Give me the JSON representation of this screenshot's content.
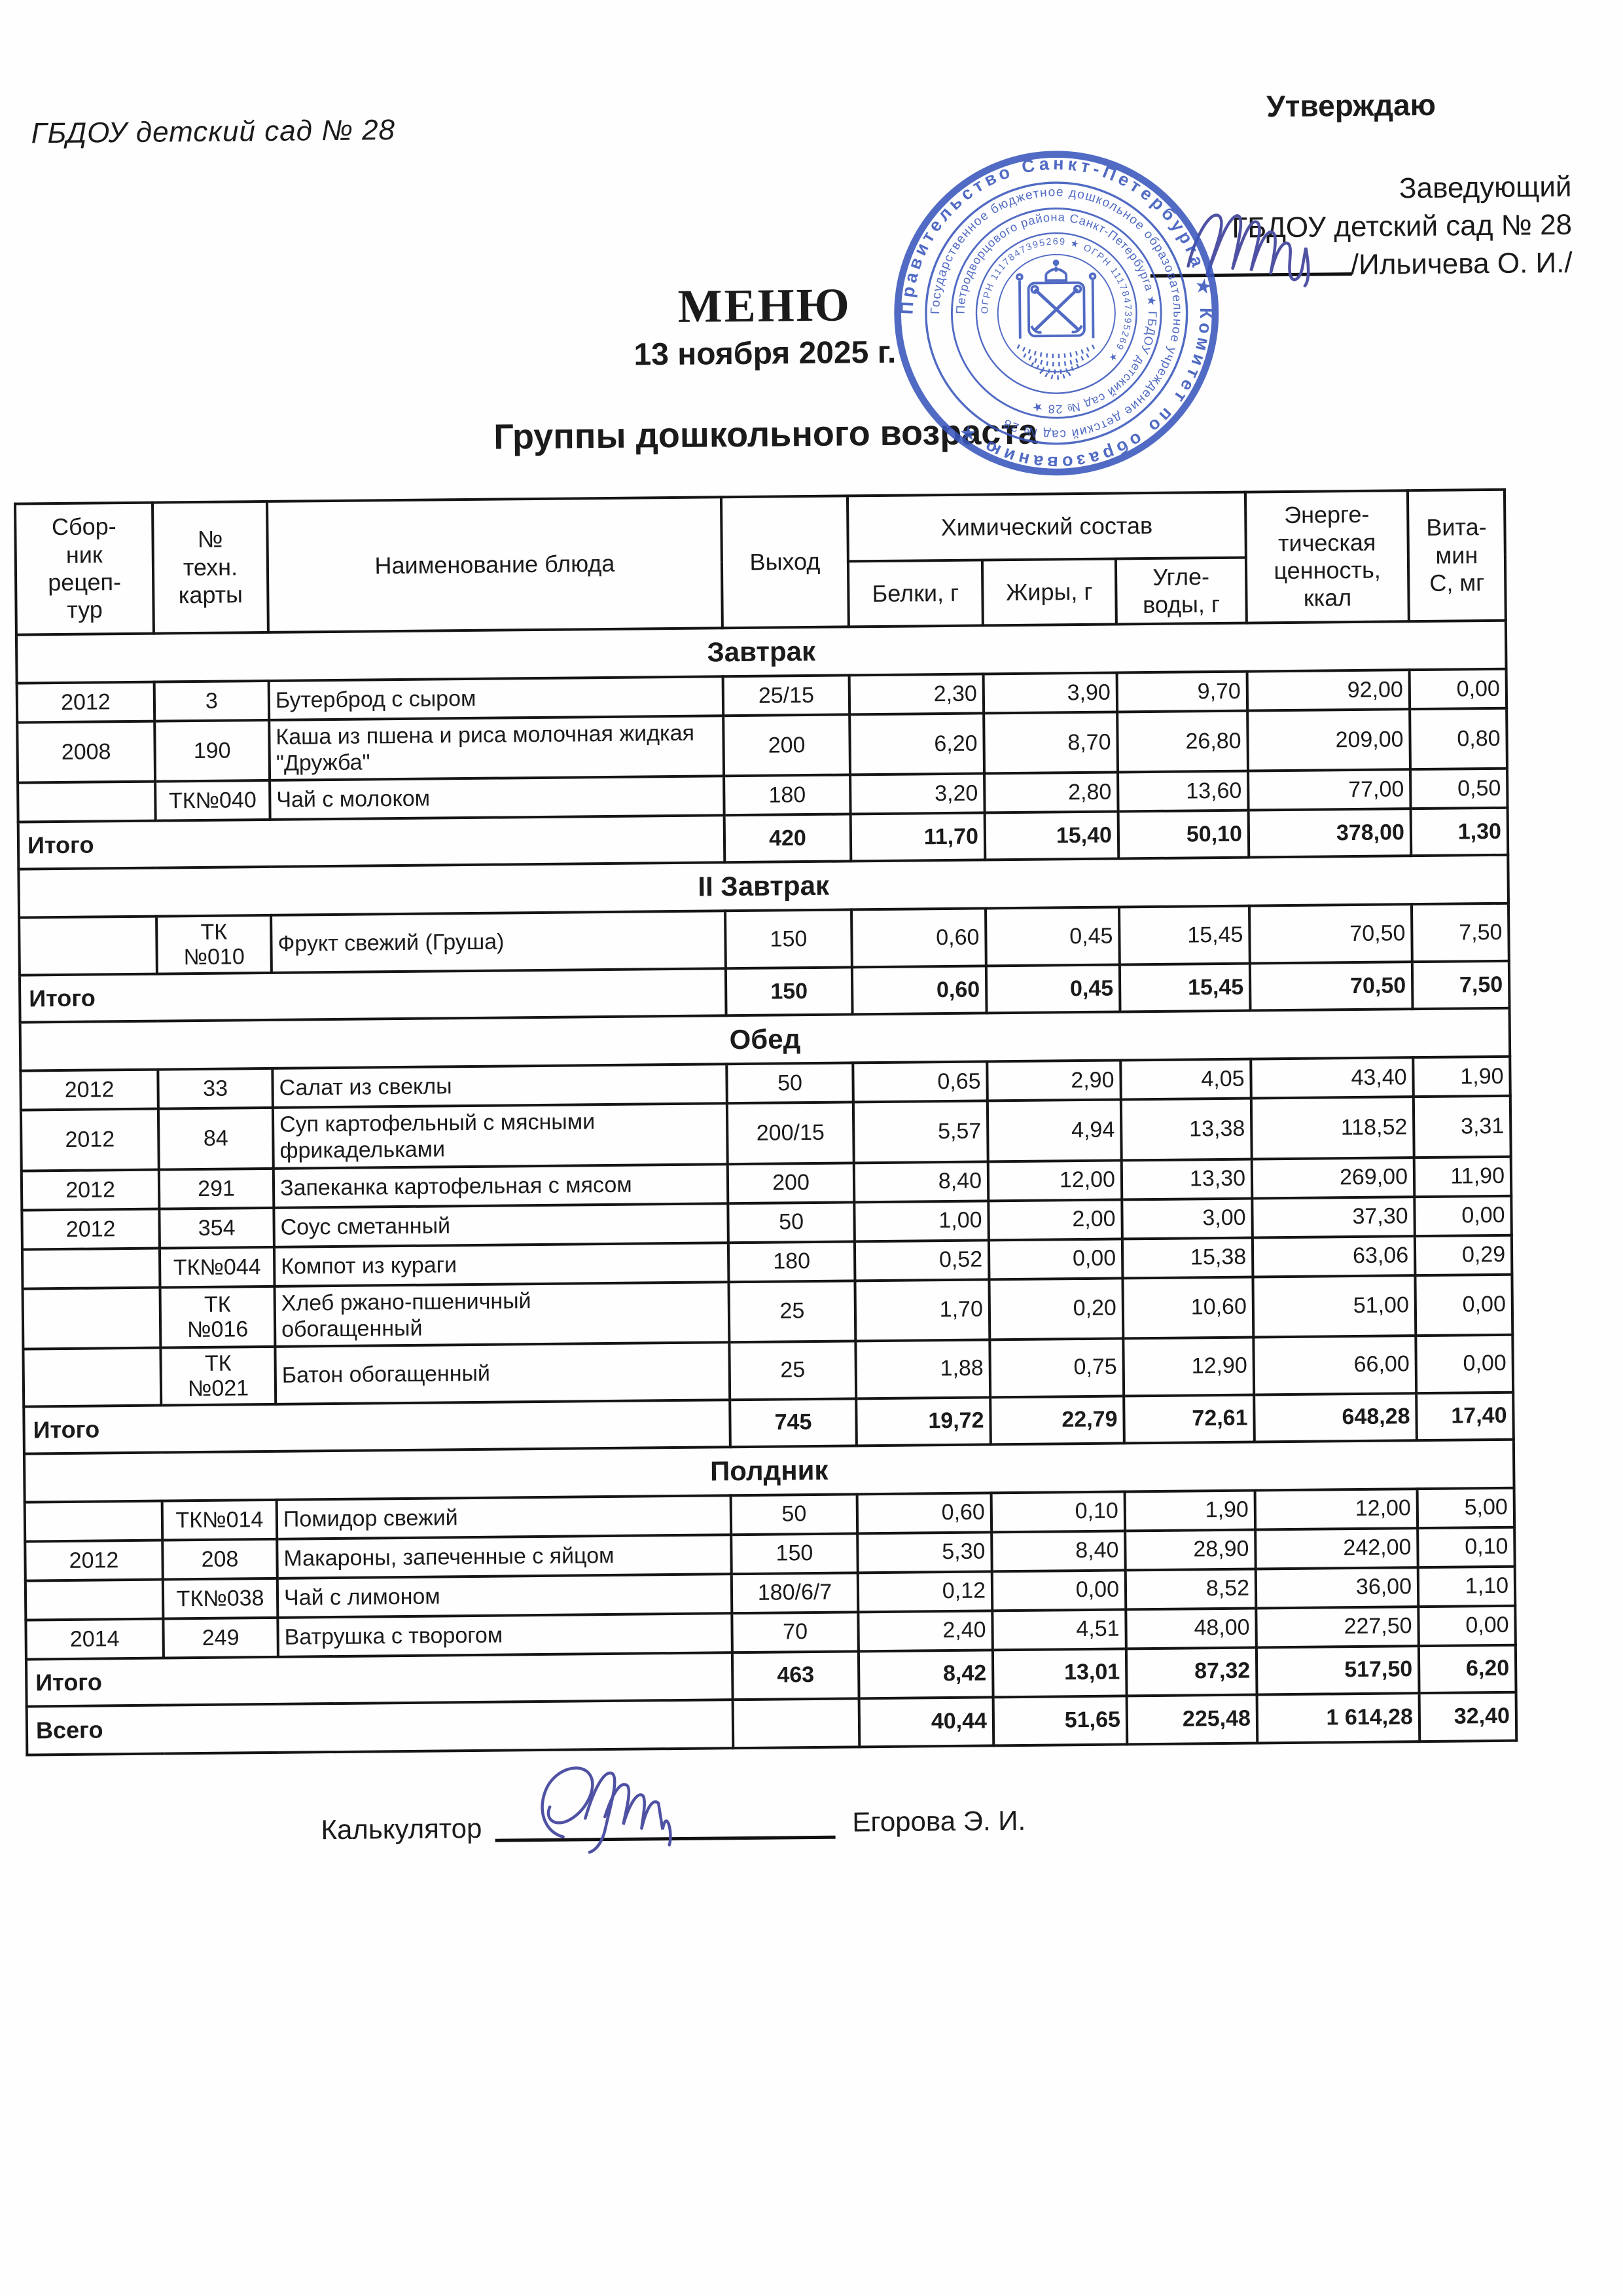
{
  "doc": {
    "org_top_left": "ГБДОУ детский сад № 28",
    "approve": {
      "label": "Утверждаю",
      "line1": "Заведующий",
      "line2": "ГБДОУ детский сад № 28",
      "line3": "/Ильичева О. И./"
    },
    "title": "МЕНЮ",
    "date": "13 ноября 2025 г.",
    "subtitle": "Группы дошкольного возраста",
    "footer": {
      "label": "Калькулятор",
      "name": "Егорова Э. И."
    }
  },
  "colors": {
    "stamp_blue": "#3a57bd",
    "ink_blue": "#4f52a3",
    "text": "#1b1b1b"
  },
  "stamp": {
    "ring_outer": "Правительство Санкт-Петербурга ★ Комитет по образованию ★",
    "ring_2": "Государственное бюджетное дошкольное образовательное учреждение детский сад № 28",
    "ring_3": "Петродворцового района Санкт-Петербурга ★ ГБДОУ детский сад № 28 ★",
    "ring_4": "ОГРН 1117847395269 ★ ОГРН 1117847395269 ★"
  },
  "table": {
    "headers": {
      "recipe_book": "Сбор-\nник\nрецеп-\nтур",
      "tech_card": "№\nтехн.\nкарты",
      "dish_name": "Наименование блюда",
      "output": "Выход",
      "chem": "Химический состав",
      "protein": "Белки, г",
      "fat": "Жиры, г",
      "carbs": "Угле-\nводы, г",
      "energy": "Энерге-\nтическая\nценность,\nккал",
      "vitamin": "Вита-\nмин\nС, мг"
    },
    "total_label": "Итого",
    "grand_label": "Всего",
    "sections": [
      {
        "title": "Завтрак",
        "rows": [
          [
            "2012",
            "3",
            "Бутерброд с сыром",
            "25/15",
            "2,30",
            "3,90",
            "9,70",
            "92,00",
            "0,00"
          ],
          [
            "2008",
            "190",
            "Каша из пшена и риса молочная жидкая \"Дружба\"",
            "200",
            "6,20",
            "8,70",
            "26,80",
            "209,00",
            "0,80"
          ],
          [
            "",
            "ТК№040",
            "Чай с молоком",
            "180",
            "3,20",
            "2,80",
            "13,60",
            "77,00",
            "0,50"
          ]
        ],
        "total": [
          "420",
          "11,70",
          "15,40",
          "50,10",
          "378,00",
          "1,30"
        ]
      },
      {
        "title": "II Завтрак",
        "rows": [
          [
            "",
            "ТК\n№010",
            "Фрукт свежий (Груша)",
            "150",
            "0,60",
            "0,45",
            "15,45",
            "70,50",
            "7,50"
          ]
        ],
        "total": [
          "150",
          "0,60",
          "0,45",
          "15,45",
          "70,50",
          "7,50"
        ]
      },
      {
        "title": "Обед",
        "rows": [
          [
            "2012",
            "33",
            "Салат из свеклы",
            "50",
            "0,65",
            "2,90",
            "4,05",
            "43,40",
            "1,90"
          ],
          [
            "2012",
            "84",
            "Суп картофельный с мясными фрикадельками",
            "200/15",
            "5,57",
            "4,94",
            "13,38",
            "118,52",
            "3,31"
          ],
          [
            "2012",
            "291",
            "Запеканка картофельная с мясом",
            "200",
            "8,40",
            "12,00",
            "13,30",
            "269,00",
            "11,90"
          ],
          [
            "2012",
            "354",
            "Соус сметанный",
            "50",
            "1,00",
            "2,00",
            "3,00",
            "37,30",
            "0,00"
          ],
          [
            "",
            "ТК№044",
            "Компот из кураги",
            "180",
            "0,52",
            "0,00",
            "15,38",
            "63,06",
            "0,29"
          ],
          [
            "",
            "ТК\n№016",
            "Хлеб ржано-пшеничный\nобогащенный",
            "25",
            "1,70",
            "0,20",
            "10,60",
            "51,00",
            "0,00"
          ],
          [
            "",
            "ТК\n№021",
            "Батон обогащенный",
            "25",
            "1,88",
            "0,75",
            "12,90",
            "66,00",
            "0,00"
          ]
        ],
        "total": [
          "745",
          "19,72",
          "22,79",
          "72,61",
          "648,28",
          "17,40"
        ]
      },
      {
        "title": "Полдник",
        "rows": [
          [
            "",
            "ТК№014",
            "Помидор свежий",
            "50",
            "0,60",
            "0,10",
            "1,90",
            "12,00",
            "5,00"
          ],
          [
            "2012",
            "208",
            "Макароны, запеченные с яйцом",
            "150",
            "5,30",
            "8,40",
            "28,90",
            "242,00",
            "0,10"
          ],
          [
            "",
            "ТК№038",
            "Чай с лимоном",
            "180/6/7",
            "0,12",
            "0,00",
            "8,52",
            "36,00",
            "1,10"
          ],
          [
            "2014",
            "249",
            "Ватрушка с творогом",
            "70",
            "2,40",
            "4,51",
            "48,00",
            "227,50",
            "0,00"
          ]
        ],
        "total": [
          "463",
          "8,42",
          "13,01",
          "87,32",
          "517,50",
          "6,20"
        ]
      }
    ],
    "grand_total": [
      "",
      "40,44",
      "51,65",
      "225,48",
      "1 614,28",
      "32,40"
    ]
  }
}
